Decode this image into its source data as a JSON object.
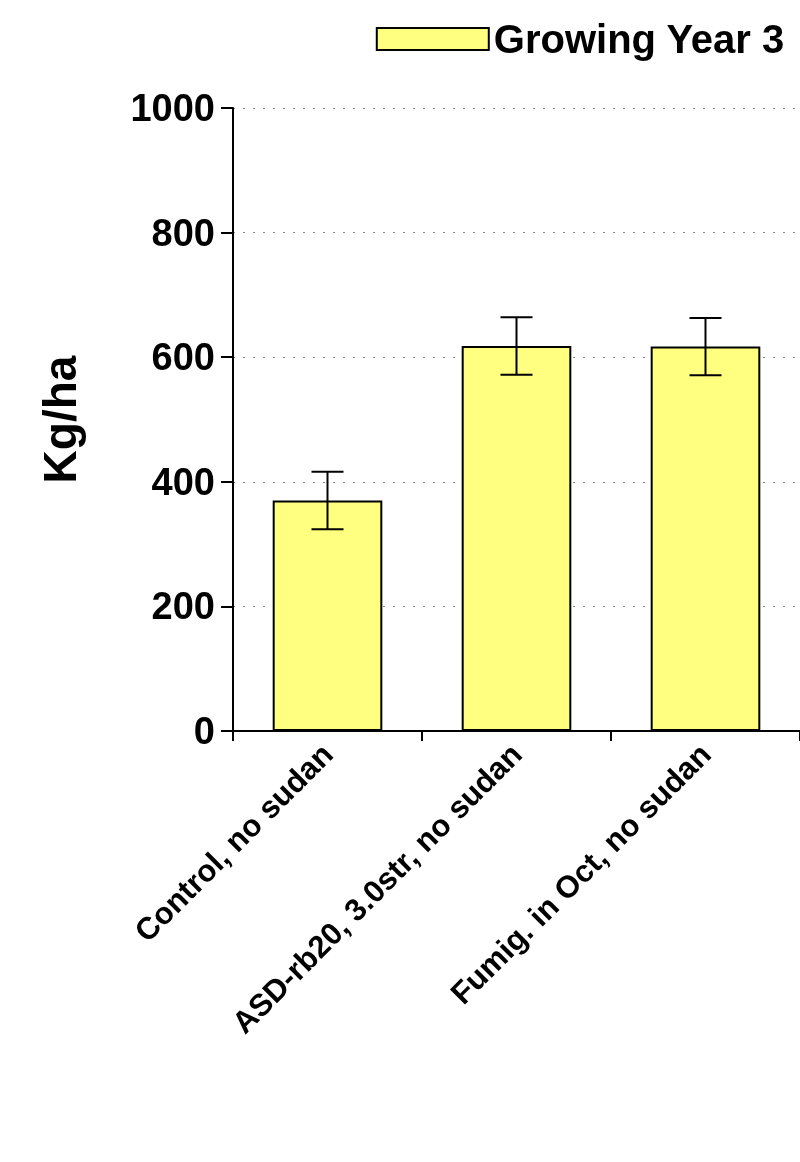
{
  "chart_data": {
    "type": "bar",
    "ylabel": "Kg/ha",
    "categories": [
      "Control, no sudan",
      "ASD-rb20, 3.0str, no sudan",
      "Fumig. in Oct, no sudan"
    ],
    "series": [
      {
        "name": "Growing Year 3",
        "color": "#ffff80",
        "values": [
          370,
          618,
          617
        ],
        "errors": [
          46,
          46,
          46
        ]
      }
    ],
    "ylim": [
      0,
      1000
    ],
    "yticks": [
      0,
      200,
      400,
      600,
      800,
      1000
    ],
    "grid": "y",
    "legend": "top right"
  }
}
